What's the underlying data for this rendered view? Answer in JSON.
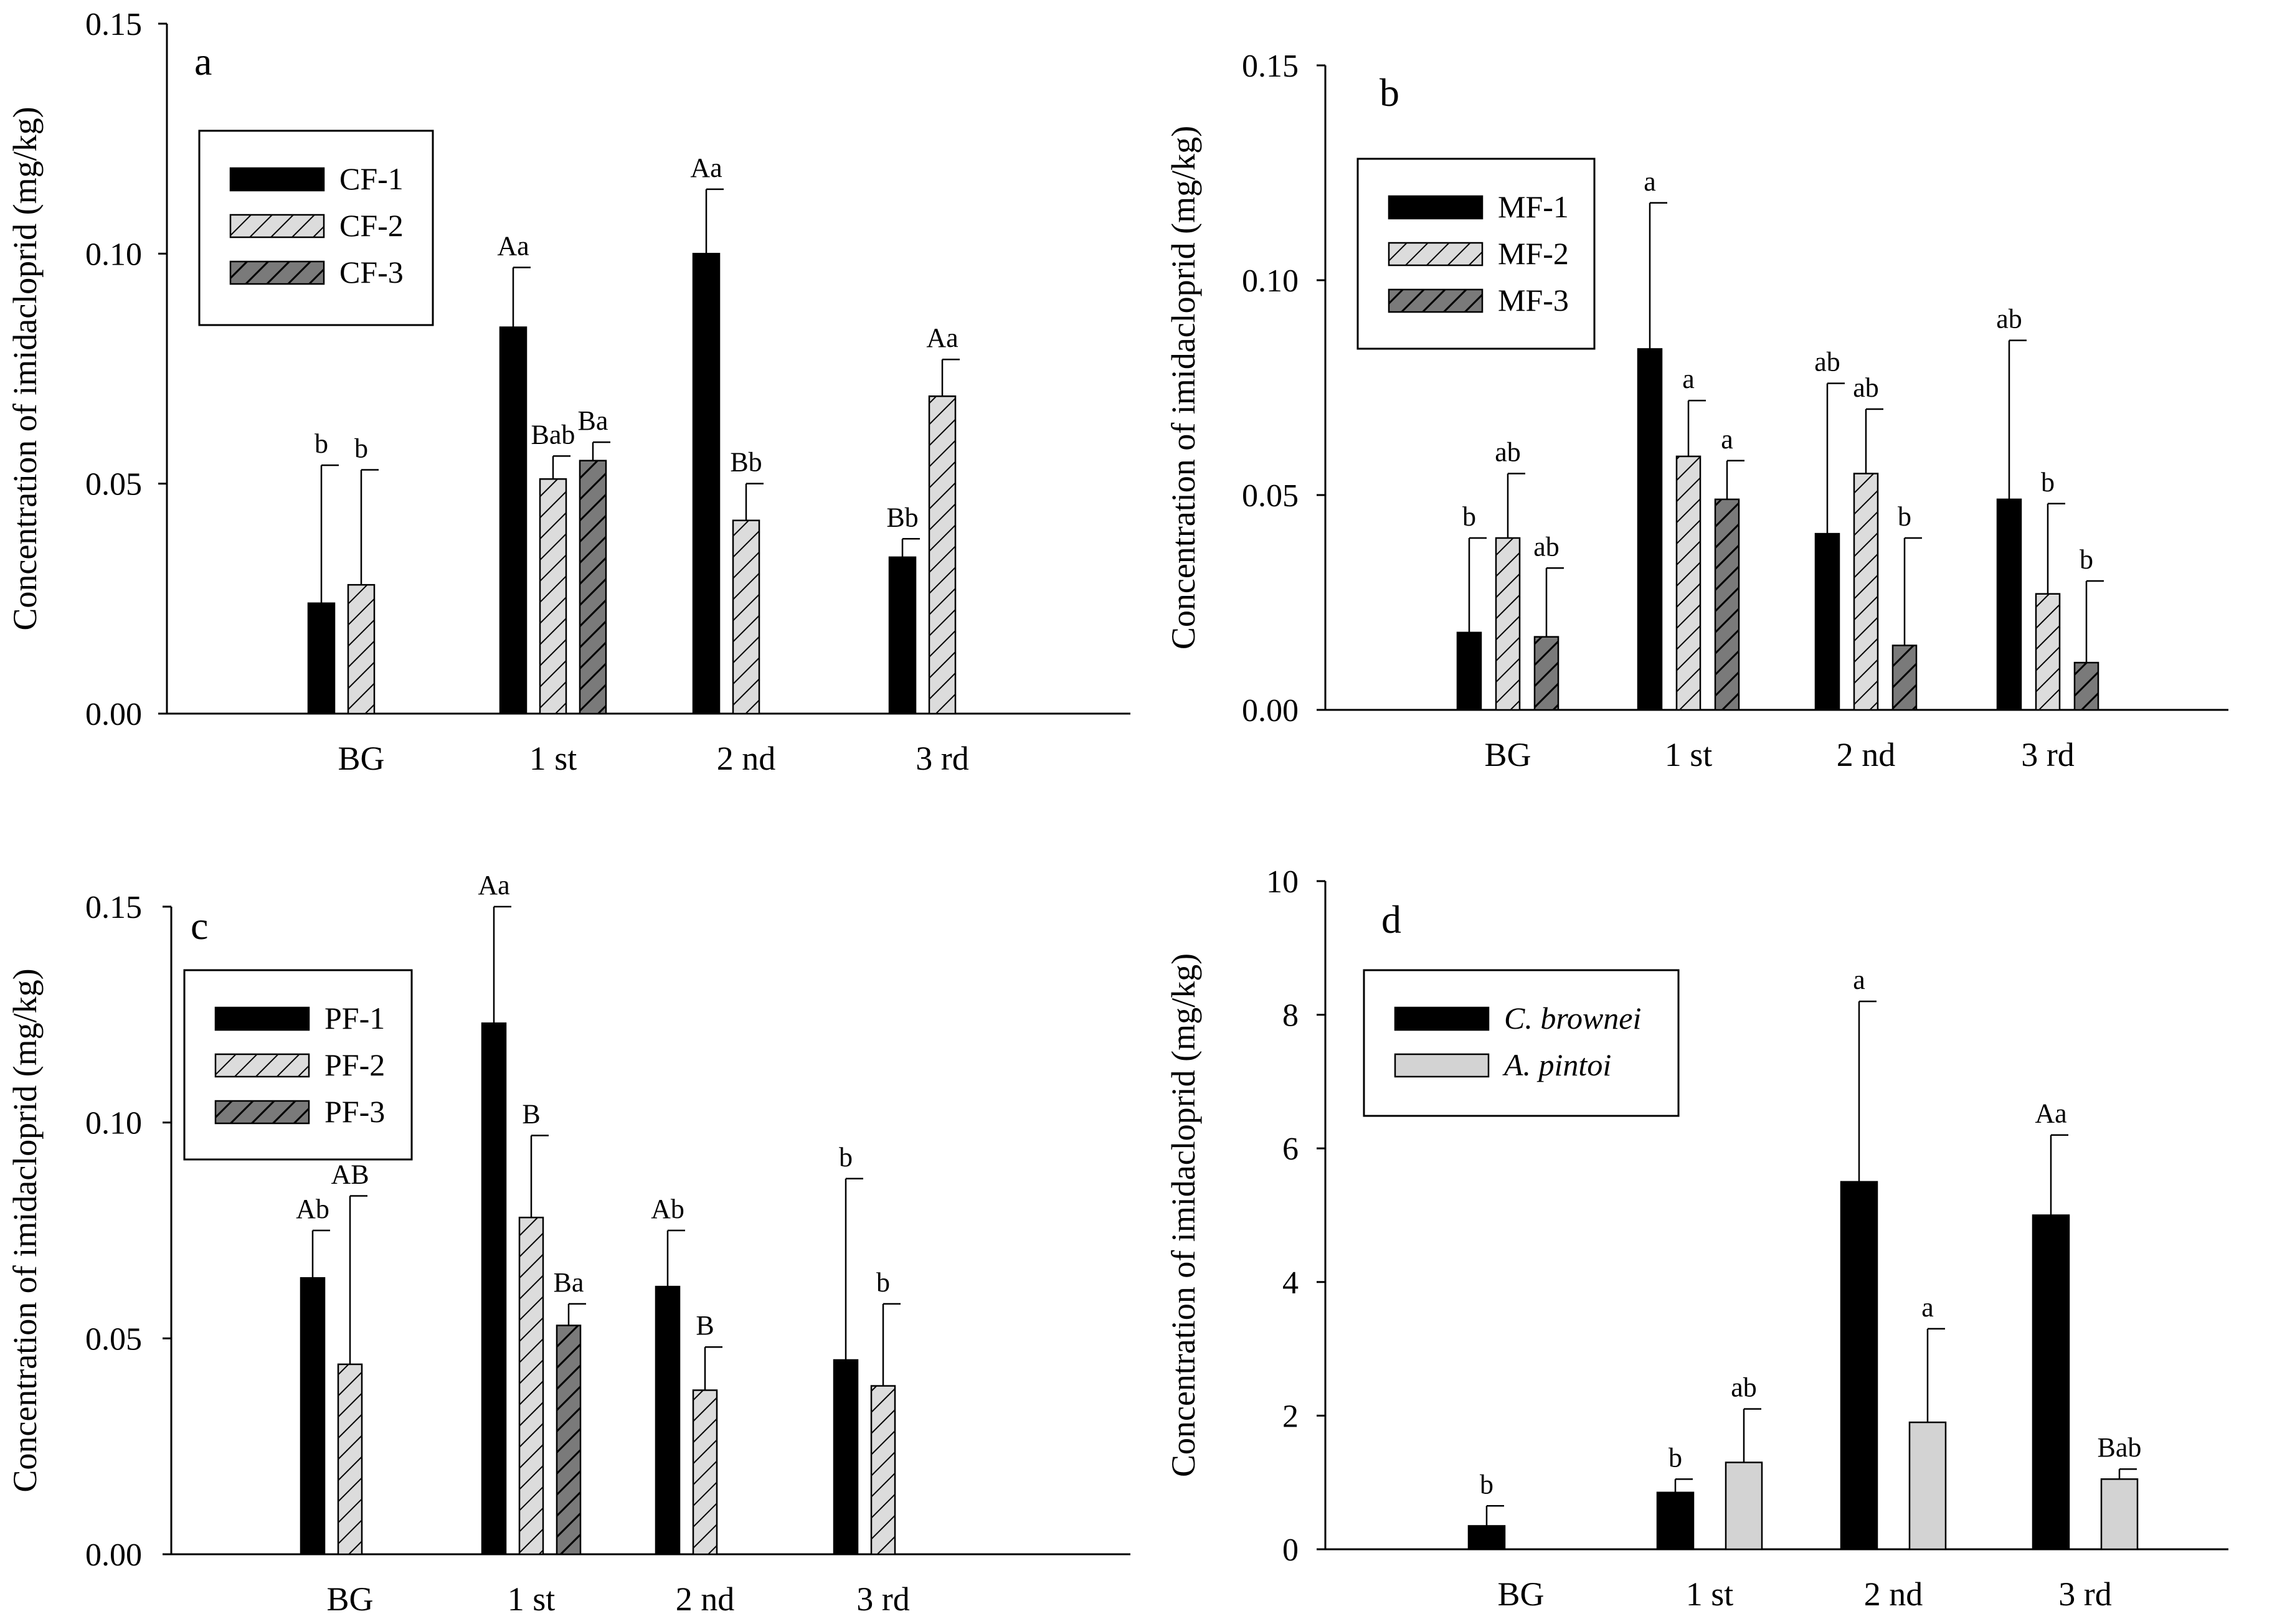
{
  "figure": {
    "background": "#ffffff"
  },
  "chart_data": [
    {
      "type": "bar",
      "panel": "a",
      "ylabel": "Concentration of imidacloprid (mg/kg)",
      "xlabel": "",
      "ylim": [
        0,
        0.15
      ],
      "yticks": [
        "0.00",
        "0.05",
        "0.10",
        "0.15"
      ],
      "categories": [
        "BG",
        "1 st",
        "2 nd",
        "3 rd"
      ],
      "legend_position": "top-left",
      "series": [
        {
          "name": "CF-1",
          "style": "solid-black",
          "values": [
            0.024,
            0.084,
            0.1,
            0.034
          ],
          "errors": [
            0.03,
            0.013,
            0.014,
            0.004
          ],
          "labels": [
            "",
            "Aa",
            "Aa",
            "Bb"
          ]
        },
        {
          "name": "CF-2",
          "style": "hatch-light",
          "values": [
            0.028,
            0.051,
            0.042,
            0.069
          ],
          "errors": [
            0.025,
            0.005,
            0.008,
            0.008
          ],
          "labels": [
            "b",
            "Bab",
            "Bb",
            "Aa"
          ]
        },
        {
          "name": "CF-3",
          "style": "hatch-dark",
          "values": [
            null,
            0.055,
            null,
            null
          ],
          "errors": [
            null,
            0.004,
            null,
            null
          ],
          "labels": [
            "",
            "Ba",
            "",
            ""
          ]
        }
      ],
      "extra_labels": [
        {
          "text": "b",
          "category": 0,
          "value": 0.054
        }
      ]
    },
    {
      "type": "bar",
      "panel": "b",
      "ylabel": "Concentration of imidacloprid (mg/kg)",
      "xlabel": "",
      "ylim": [
        0,
        0.15
      ],
      "yticks": [
        "0.00",
        "0.05",
        "0.10",
        "0.15"
      ],
      "categories": [
        "BG",
        "1 st",
        "2 nd",
        "3 rd"
      ],
      "legend_position": "top-left",
      "series": [
        {
          "name": "MF-1",
          "style": "solid-black",
          "values": [
            0.018,
            0.084,
            0.041,
            0.049
          ],
          "errors": [
            0.022,
            0.034,
            0.035,
            0.037
          ],
          "labels": [
            "b",
            "a",
            "ab",
            "ab"
          ]
        },
        {
          "name": "MF-2",
          "style": "hatch-light",
          "values": [
            0.04,
            0.059,
            0.055,
            0.027
          ],
          "errors": [
            0.015,
            0.013,
            0.015,
            0.021
          ],
          "labels": [
            "ab",
            "a",
            "ab",
            "b"
          ]
        },
        {
          "name": "MF-3",
          "style": "hatch-dark",
          "values": [
            0.017,
            0.049,
            0.015,
            0.011
          ],
          "errors": [
            0.016,
            0.009,
            0.025,
            0.019
          ],
          "labels": [
            "ab",
            "a",
            "b",
            "b"
          ]
        }
      ]
    },
    {
      "type": "bar",
      "panel": "c",
      "ylabel": "Concentration of imidacloprid (mg/kg)",
      "xlabel": "",
      "ylim": [
        0,
        0.15
      ],
      "yticks": [
        "0.00",
        "0.05",
        "0.10",
        "0.15"
      ],
      "categories": [
        "BG",
        "1 st",
        "2 nd",
        "3 rd"
      ],
      "legend_position": "top-left",
      "series": [
        {
          "name": "PF-1",
          "style": "solid-black",
          "values": [
            0.064,
            0.123,
            0.062,
            0.045
          ],
          "errors": [
            0.011,
            0.027,
            0.013,
            0.042
          ],
          "labels": [
            "Ab",
            "Aa",
            "Ab",
            "b"
          ]
        },
        {
          "name": "PF-2",
          "style": "hatch-light",
          "values": [
            0.044,
            0.078,
            0.038,
            0.039
          ],
          "errors": [
            0.039,
            0.019,
            0.01,
            0.019
          ],
          "labels": [
            "AB",
            "B",
            "B",
            "b"
          ]
        },
        {
          "name": "PF-3",
          "style": "hatch-dark",
          "values": [
            null,
            0.053,
            null,
            null
          ],
          "errors": [
            null,
            0.005,
            null,
            null
          ],
          "labels": [
            "",
            "Ba",
            "",
            ""
          ]
        }
      ]
    },
    {
      "type": "bar",
      "panel": "d",
      "ylabel": "Concentration of imidacloprid (mg/kg)",
      "xlabel": "",
      "ylim": [
        0,
        10
      ],
      "yticks": [
        "0",
        "2",
        "4",
        "6",
        "8",
        "10"
      ],
      "categories": [
        "BG",
        "1 st",
        "2 nd",
        "3 rd"
      ],
      "legend_position": "top-left",
      "series": [
        {
          "name": "C. brownei",
          "style": "solid-black",
          "italic": true,
          "values": [
            0.35,
            0.85,
            5.5,
            5.0
          ],
          "errors": [
            0.3,
            0.2,
            2.7,
            1.2
          ],
          "labels": [
            "b",
            "b",
            "a",
            "Aa"
          ]
        },
        {
          "name": "A. pintoi",
          "style": "solid-light",
          "italic": true,
          "values": [
            null,
            1.3,
            1.9,
            1.05
          ],
          "errors": [
            null,
            0.8,
            1.4,
            0.15
          ],
          "labels": [
            "",
            "ab",
            "a",
            "Bab"
          ]
        }
      ]
    }
  ]
}
